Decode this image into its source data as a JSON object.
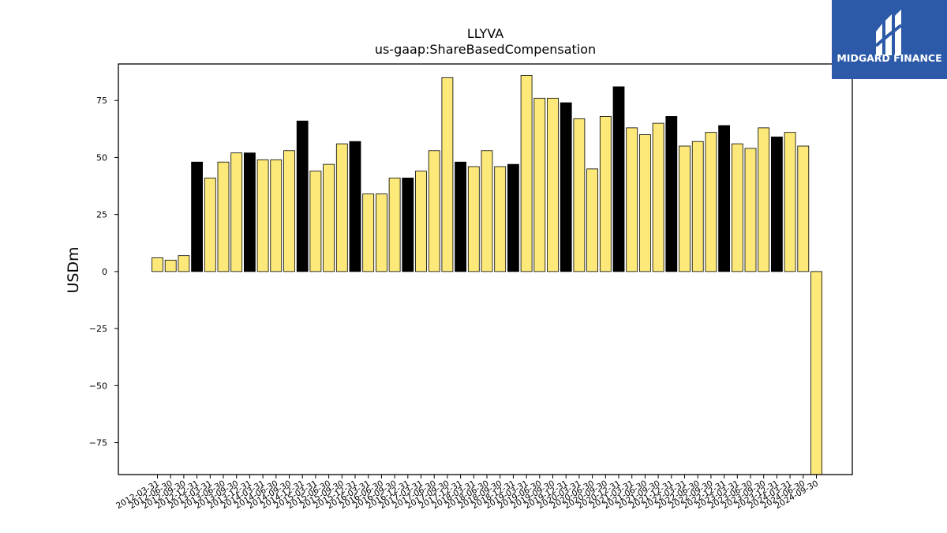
{
  "logo": {
    "text": "MIDGARD FINANCE",
    "background": "#2c5aa8"
  },
  "chart_data": {
    "type": "bar",
    "title": "LLYVA",
    "subtitle": "us-gaap:ShareBasedCompensation",
    "ylabel": "USDm",
    "xlabel": "",
    "ylim": [
      -89,
      91
    ],
    "yticks": [
      -75,
      -50,
      -25,
      0,
      25,
      50,
      75
    ],
    "grid": false,
    "legend": "none",
    "colors": {
      "quarter": "#fce97a",
      "fiscal_q4": "#000000",
      "edge": "#000000"
    },
    "categories": [
      "2012-03-31",
      "2012-06-30",
      "2012-09-30",
      "2012-12-31",
      "2013-03-31",
      "2013-06-30",
      "2013-09-30",
      "2013-12-31",
      "2014-03-31",
      "2014-06-30",
      "2014-09-30",
      "2014-12-31",
      "2015-03-31",
      "2015-06-30",
      "2015-09-30",
      "2015-12-31",
      "2016-03-31",
      "2016-06-30",
      "2016-09-30",
      "2016-12-31",
      "2017-03-31",
      "2017-06-30",
      "2017-09-30",
      "2017-12-31",
      "2018-03-31",
      "2018-06-30",
      "2018-09-30",
      "2018-12-31",
      "2019-03-31",
      "2019-06-30",
      "2019-09-30",
      "2019-12-31",
      "2020-03-31",
      "2020-06-30",
      "2020-09-30",
      "2020-12-31",
      "2021-03-31",
      "2021-06-30",
      "2021-09-30",
      "2021-12-31",
      "2022-03-31",
      "2022-06-30",
      "2022-09-30",
      "2022-12-31",
      "2023-03-31",
      "2023-06-30",
      "2023-09-30",
      "2023-12-31",
      "2024-03-31",
      "2024-06-30",
      "2024-09-30"
    ],
    "values": [
      6,
      5,
      7,
      48,
      41,
      48,
      52,
      52,
      49,
      49,
      53,
      66,
      44,
      47,
      56,
      57,
      34,
      34,
      41,
      41,
      44,
      53,
      85,
      48,
      46,
      53,
      46,
      47,
      86,
      76,
      76,
      74,
      67,
      45,
      68,
      81,
      63,
      60,
      65,
      68,
      55,
      57,
      61,
      64,
      56,
      54,
      63,
      59,
      61,
      55,
      -89
    ],
    "highlight": [
      false,
      false,
      false,
      true,
      false,
      false,
      false,
      true,
      false,
      false,
      false,
      true,
      false,
      false,
      false,
      true,
      false,
      false,
      false,
      true,
      false,
      false,
      false,
      true,
      false,
      false,
      false,
      true,
      false,
      false,
      false,
      true,
      false,
      false,
      false,
      true,
      false,
      false,
      false,
      true,
      false,
      false,
      false,
      true,
      false,
      false,
      false,
      true,
      false,
      false,
      false
    ]
  }
}
